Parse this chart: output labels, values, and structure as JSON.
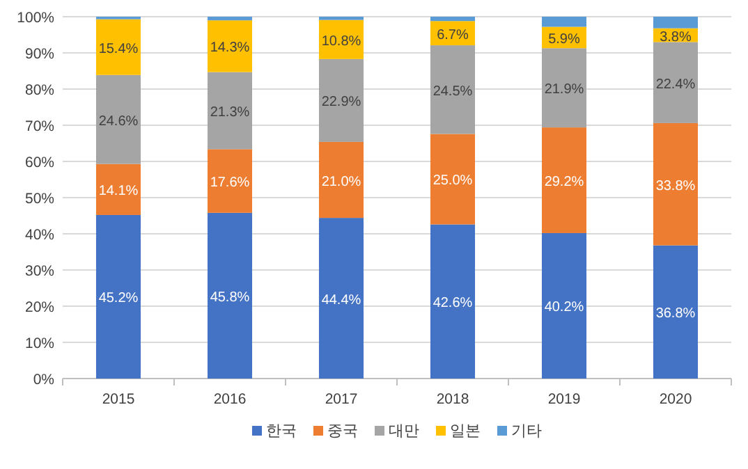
{
  "chart_data": {
    "type": "bar",
    "stacked": true,
    "categories": [
      "2015",
      "2016",
      "2017",
      "2018",
      "2019",
      "2020"
    ],
    "ylim": [
      0,
      100
    ],
    "yticks": [
      {
        "value": 0,
        "label": "0%"
      },
      {
        "value": 10,
        "label": "10%"
      },
      {
        "value": 20,
        "label": "20%"
      },
      {
        "value": 30,
        "label": "30%"
      },
      {
        "value": 40,
        "label": "40%"
      },
      {
        "value": 50,
        "label": "50%"
      },
      {
        "value": 60,
        "label": "60%"
      },
      {
        "value": 70,
        "label": "70%"
      },
      {
        "value": 80,
        "label": "80%"
      },
      {
        "value": 90,
        "label": "90%"
      },
      {
        "value": 100,
        "label": "100%"
      }
    ],
    "grid": "y",
    "legend": "bottom",
    "series": [
      {
        "name": "한국",
        "color": "#4472c4",
        "values": [
          45.2,
          45.8,
          44.4,
          42.6,
          40.2,
          36.8
        ],
        "value_labels": [
          "45.2%",
          "45.8%",
          "44.4%",
          "42.6%",
          "40.2%",
          "36.8%"
        ]
      },
      {
        "name": "중국",
        "color": "#ed7d31",
        "values": [
          14.1,
          17.6,
          21.0,
          25.0,
          29.2,
          33.8
        ],
        "value_labels": [
          "14.1%",
          "17.6%",
          "21.0%",
          "25.0%",
          "29.2%",
          "33.8%"
        ]
      },
      {
        "name": "대만",
        "color": "#a5a5a5",
        "values": [
          24.6,
          21.3,
          22.9,
          24.5,
          21.9,
          22.4
        ],
        "value_labels": [
          "24.6%",
          "21.3%",
          "22.9%",
          "24.5%",
          "21.9%",
          "22.4%"
        ]
      },
      {
        "name": "일본",
        "color": "#ffc000",
        "values": [
          15.4,
          14.3,
          10.8,
          6.7,
          5.9,
          3.8
        ],
        "value_labels": [
          "15.4%",
          "14.3%",
          "10.8%",
          "6.7%",
          "5.9%",
          "3.8%"
        ]
      },
      {
        "name": "기타",
        "color": "#5b9bd5",
        "values": [
          0.7,
          1.0,
          0.9,
          1.2,
          2.8,
          3.2
        ]
      }
    ]
  }
}
